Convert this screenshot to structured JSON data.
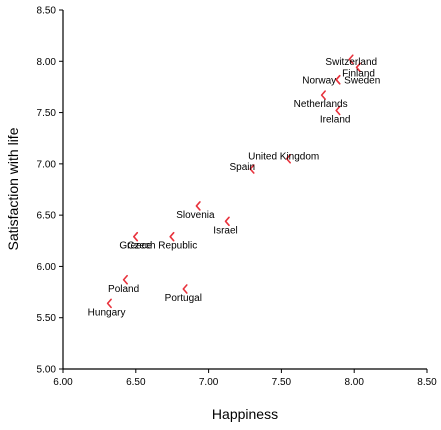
{
  "chart_data": {
    "type": "scatter",
    "title": "",
    "xlabel": "Happiness",
    "ylabel": "Satisfaction with life",
    "xlim": [
      6.0,
      8.5
    ],
    "ylim": [
      5.0,
      8.5
    ],
    "x_ticks": [
      "6.00",
      "6.50",
      "7.00",
      "7.50",
      "8.00",
      "8.50"
    ],
    "y_ticks": [
      "5.00",
      "5.50",
      "6.00",
      "6.50",
      "7.00",
      "7.50",
      "8.00",
      "8.50"
    ],
    "grid": false,
    "marker_color": "#e8323c",
    "points": [
      {
        "label": "Switzerland",
        "x": 7.98,
        "y": 8.02
      },
      {
        "label": "Finland",
        "x": 8.03,
        "y": 7.94
      },
      {
        "label": "Norway",
        "x": 7.89,
        "y": 7.82
      },
      {
        "label": "Sweden",
        "x": 7.89,
        "y": 7.82
      },
      {
        "label": "Netherlands",
        "x": 7.79,
        "y": 7.67
      },
      {
        "label": "Ireland",
        "x": 7.89,
        "y": 7.52
      },
      {
        "label": "United Kingdom",
        "x": 7.55,
        "y": 7.05
      },
      {
        "label": "Spain",
        "x": 7.3,
        "y": 6.95
      },
      {
        "label": "Slovenia",
        "x": 6.93,
        "y": 6.59
      },
      {
        "label": "Israel",
        "x": 7.13,
        "y": 6.44
      },
      {
        "label": "Czech Republic",
        "x": 6.75,
        "y": 6.29
      },
      {
        "label": "Greece",
        "x": 6.5,
        "y": 6.29
      },
      {
        "label": "Poland",
        "x": 6.43,
        "y": 5.87
      },
      {
        "label": "Portugal",
        "x": 6.84,
        "y": 5.78
      },
      {
        "label": "Hungary",
        "x": 6.32,
        "y": 5.64
      }
    ]
  }
}
